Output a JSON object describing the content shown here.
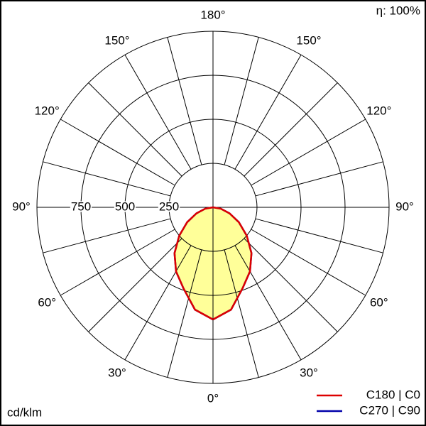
{
  "chart_data": {
    "type": "polar",
    "top_note": "η: 100%",
    "unit_label": "cd/klm",
    "angles": [
      0,
      10,
      20,
      30,
      40,
      50,
      60,
      70,
      80,
      90
    ],
    "series": [
      {
        "name": "C270 | C90",
        "color": "#0000aa",
        "values": [
          637,
          590,
          490,
          420,
          340,
          250,
          170,
          100,
          45,
          0
        ]
      },
      {
        "name": "C180 | C0",
        "color": "#dd0000",
        "values": [
          637,
          590,
          490,
          420,
          340,
          250,
          170,
          100,
          45,
          0
        ]
      }
    ],
    "fill_color": "#ffff99",
    "rlim": [
      0,
      1000
    ],
    "rticks": [
      250,
      500,
      750
    ],
    "angle_ticks": [
      {
        "value": 0,
        "label": "0°"
      },
      {
        "value": 30,
        "label": "30°"
      },
      {
        "value": 60,
        "label": "60°"
      },
      {
        "value": 90,
        "label": "90°"
      },
      {
        "value": 120,
        "label": "120°"
      },
      {
        "value": 150,
        "label": "150°"
      },
      {
        "value": 180,
        "label": "180°"
      }
    ]
  }
}
